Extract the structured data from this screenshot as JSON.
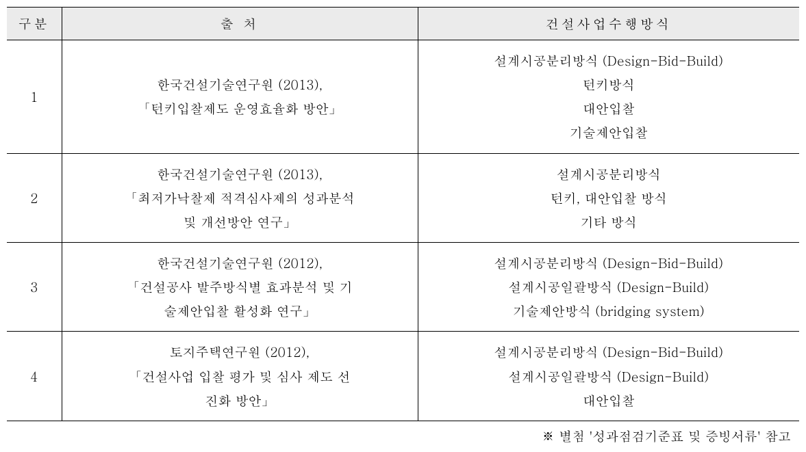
{
  "table": {
    "headers": {
      "col1": "구분",
      "col2": "출 처",
      "col3": "건설사업수행방식"
    },
    "rows": [
      {
        "num": "1",
        "source_line1": "한국건설기술연구원 (2013),",
        "source_line2": "「턴키입찰제도 운영효율화 방안」",
        "source_line3": "",
        "method_line1": "설계시공분리방식 (Design-Bid-Build)",
        "method_line2": "턴키방식",
        "method_line3": "대안입찰",
        "method_line4": "기술제안입찰"
      },
      {
        "num": "2",
        "source_line1": "한국건설기술연구원 (2013),",
        "source_line2": "「최저가낙찰제 적격심사제의 성과분석",
        "source_line3": "및 개선방안 연구」",
        "method_line1": "설계시공분리방식",
        "method_line2": "턴키, 대안입찰 방식",
        "method_line3": "기타 방식",
        "method_line4": ""
      },
      {
        "num": "3",
        "source_line1": "한국건설기술연구원 (2012),",
        "source_line2": "「건설공사 발주방식별 효과분석 및 기",
        "source_line3": "술제안입찰 활성화 연구」",
        "method_line1": "설계시공분리방식 (Design-Bid-Build)",
        "method_line2": "설계시공일괄방식 (Design-Build)",
        "method_line3": "기술제안방식 (bridging system)",
        "method_line4": ""
      },
      {
        "num": "4",
        "source_line1": "토지주택연구원 (2012),",
        "source_line2": "「건설사업 입찰 평가 및 심사 제도 선",
        "source_line3": "진화 방안」",
        "method_line1": "설계시공분리방식 (Design-Bid-Build)",
        "method_line2": "설계시공일괄방식 (Design-Build)",
        "method_line3": "대안입찰",
        "method_line4": ""
      }
    ]
  },
  "footnote": "※ 별첨 '성과점검기준표 및 증빙서류' 참고",
  "styles": {
    "background_color": "#ffffff",
    "header_bg_color": "#ebebeb",
    "border_color": "#000000",
    "font_size": 19,
    "line_height": 1.85,
    "header_letter_spacing": 4,
    "col_widths": {
      "num": 80,
      "source": 520
    },
    "outer_border_width": 1.5,
    "inner_border_width": 1
  }
}
